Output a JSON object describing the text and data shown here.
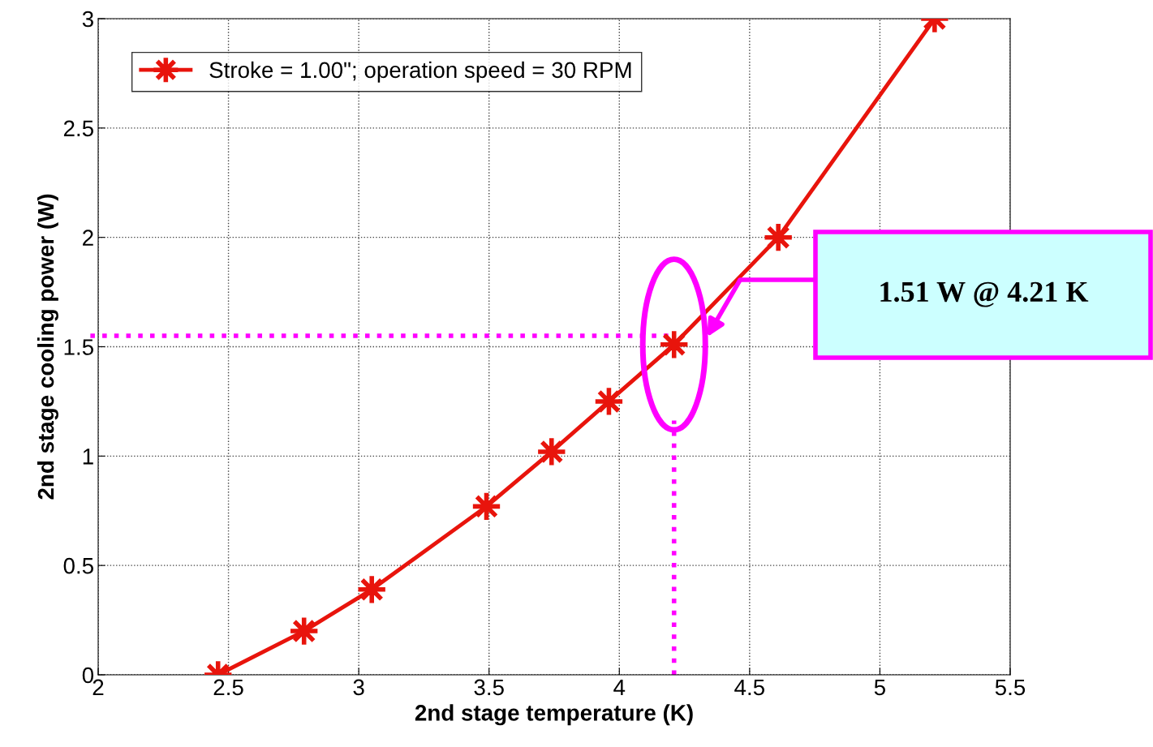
{
  "chart_data": {
    "type": "line",
    "xlabel": "2nd stage temperature (K)",
    "ylabel": "2nd stage cooling power (W)",
    "x": [
      2.46,
      2.79,
      3.05,
      3.49,
      3.74,
      3.96,
      4.21,
      4.61,
      5.21
    ],
    "series": [
      {
        "name": "Stroke = 1.00\"; operation speed = 30 RPM",
        "color": "#e8140c",
        "values": [
          0,
          0.2,
          0.39,
          0.77,
          1.02,
          1.25,
          1.51,
          2.0,
          3.0
        ]
      }
    ],
    "xlim": [
      2,
      5.5
    ],
    "xticks": [
      2,
      2.5,
      3,
      3.5,
      4,
      4.5,
      5,
      5.5
    ],
    "ylim": [
      0,
      3
    ],
    "yticks": [
      0,
      0.5,
      1,
      1.5,
      2,
      2.5,
      3
    ],
    "grid": true,
    "legend": "top left",
    "marker": "star",
    "line_style": "solid",
    "ref_lines": [
      {
        "axis": "y",
        "value": 1.55,
        "color": "#ff00ff",
        "line_style": "dotted"
      },
      {
        "axis": "x",
        "value": 4.21,
        "color": "#ff00ff",
        "line_style": "dotted"
      }
    ],
    "annotations": [
      "1.51 W @ 4.21 K"
    ]
  }
}
